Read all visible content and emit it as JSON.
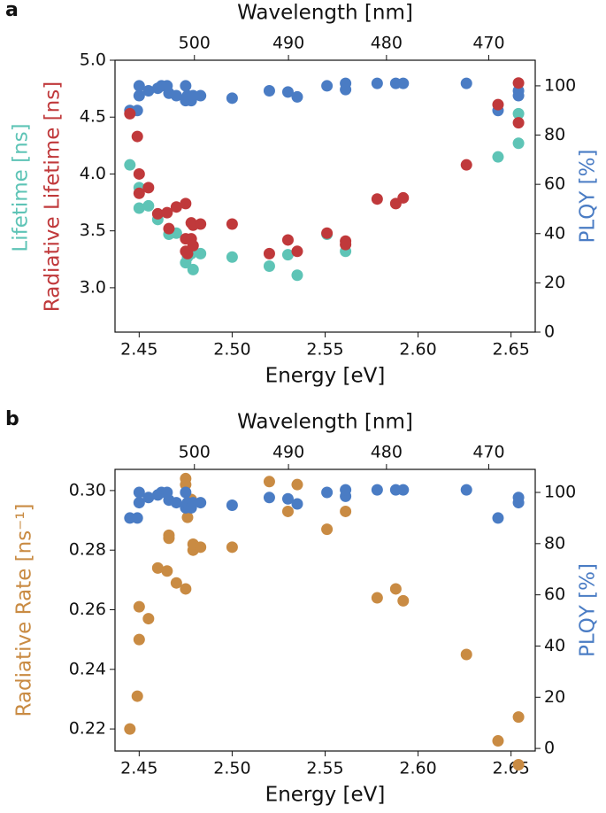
{
  "chart_data": [
    {
      "type": "scatter",
      "label": "a",
      "xlabel": "Energy [eV]",
      "x2label": "Wavelength [nm]",
      "ylabels": [
        {
          "text": "Lifetime [ns]",
          "color": "#5ec4b6"
        },
        {
          "text": "Radiative Lifetime [ns]",
          "color": "#c0393b"
        }
      ],
      "y2label": {
        "text": "PLQY [%]",
        "color": "#4a7cc4"
      },
      "xlim": [
        2.437,
        2.663
      ],
      "ylim": [
        2.61,
        5.0
      ],
      "y2lim": [
        0,
        110.4
      ],
      "xticks": [
        2.45,
        {
          "value": 2.5,
          "label": "2.50"
        },
        2.55,
        {
          "value": 2.6,
          "label": "2.60"
        },
        2.65
      ],
      "x2ticks": [
        {
          "value": 2.4797,
          "label": "500"
        },
        {
          "value": 2.5303,
          "label": "490"
        },
        {
          "value": 2.583,
          "label": "480"
        },
        {
          "value": 2.638,
          "label": "470"
        }
      ],
      "yticks": [
        {
          "value": 3.0,
          "label": "3.0"
        },
        3.5,
        {
          "value": 4.0,
          "label": "4.0"
        },
        4.5,
        {
          "value": 5.0,
          "label": "5.0"
        }
      ],
      "y2ticks": [
        0,
        20,
        40,
        60,
        80,
        100
      ],
      "series": [
        {
          "name": "PLQY",
          "color": "#4a7cc4",
          "axis": "y2",
          "x": [
            2.445,
            2.449,
            2.45,
            2.45,
            2.455,
            2.46,
            2.462,
            2.465,
            2.466,
            2.47,
            2.475,
            2.475,
            2.476,
            2.478,
            2.479,
            2.483,
            2.5,
            2.52,
            2.53,
            2.535,
            2.551,
            2.561,
            2.561,
            2.578,
            2.588,
            2.592,
            2.626,
            2.643,
            2.654,
            2.654
          ],
          "values": [
            90,
            90,
            96,
            100,
            98,
            99,
            100,
            100,
            97,
            96,
            100,
            94,
            96,
            94,
            96,
            96,
            95,
            98,
            97.5,
            95.5,
            100,
            98.5,
            101,
            101,
            101,
            101,
            101,
            90,
            96,
            98
          ]
        },
        {
          "name": "Lifetime",
          "color": "#5ec4b6",
          "axis": "y",
          "x": [
            2.445,
            2.45,
            2.45,
            2.455,
            2.46,
            2.466,
            2.47,
            2.475,
            2.476,
            2.478,
            2.479,
            2.483,
            2.5,
            2.52,
            2.53,
            2.535,
            2.551,
            2.561,
            2.643,
            2.654,
            2.654
          ],
          "values": [
            4.08,
            3.88,
            3.7,
            3.72,
            3.6,
            3.47,
            3.48,
            3.22,
            3.27,
            3.3,
            3.16,
            3.3,
            3.27,
            3.19,
            3.29,
            3.11,
            3.47,
            3.32,
            4.15,
            4.27,
            4.53
          ]
        },
        {
          "name": "Radiative Lifetime",
          "color": "#c0393b",
          "axis": "y",
          "x": [
            2.445,
            2.449,
            2.45,
            2.45,
            2.455,
            2.46,
            2.465,
            2.466,
            2.47,
            2.475,
            2.475,
            2.475,
            2.476,
            2.478,
            2.478,
            2.479,
            2.479,
            2.483,
            2.5,
            2.52,
            2.53,
            2.535,
            2.551,
            2.561,
            2.561,
            2.578,
            2.588,
            2.592,
            2.626,
            2.643,
            2.654,
            2.654
          ],
          "values": [
            4.53,
            4.33,
            4.0,
            3.83,
            3.88,
            3.65,
            3.66,
            3.52,
            3.71,
            3.74,
            3.43,
            3.32,
            3.3,
            3.57,
            3.43,
            3.37,
            3.55,
            3.56,
            3.56,
            3.3,
            3.42,
            3.32,
            3.48,
            3.41,
            3.38,
            3.78,
            3.74,
            3.79,
            4.08,
            4.61,
            4.8,
            4.45
          ]
        }
      ]
    },
    {
      "type": "scatter",
      "label": "b",
      "xlabel": "Energy [eV]",
      "x2label": "Wavelength [nm]",
      "ylabels": [
        {
          "text": "Radiative Rate [ns⁻¹]",
          "color": "#c98b43"
        }
      ],
      "y2label": {
        "text": "PLQY [%]",
        "color": "#4a7cc4"
      },
      "xlim": [
        2.437,
        2.663
      ],
      "ylim": [
        0.2126,
        0.3071
      ],
      "y2lim": [
        -1,
        109
      ],
      "xticks": [
        2.45,
        {
          "value": 2.5,
          "label": "2.50"
        },
        2.55,
        {
          "value": 2.6,
          "label": "2.60"
        },
        2.65
      ],
      "x2ticks": [
        {
          "value": 2.4797,
          "label": "500"
        },
        {
          "value": 2.5303,
          "label": "490"
        },
        {
          "value": 2.583,
          "label": "480"
        },
        {
          "value": 2.638,
          "label": "470"
        }
      ],
      "yticks": [
        0.22,
        0.24,
        0.26,
        0.28,
        {
          "value": 0.3,
          "label": "0.30"
        }
      ],
      "y2ticks": [
        0,
        20,
        40,
        60,
        80,
        100
      ],
      "series": [
        {
          "name": "Radiative Rate",
          "color": "#c98b43",
          "axis": "y",
          "x": [
            2.445,
            2.449,
            2.45,
            2.45,
            2.455,
            2.46,
            2.465,
            2.466,
            2.466,
            2.47,
            2.475,
            2.475,
            2.475,
            2.476,
            2.478,
            2.479,
            2.479,
            2.483,
            2.5,
            2.52,
            2.53,
            2.535,
            2.551,
            2.561,
            2.578,
            2.588,
            2.592,
            2.626,
            2.643,
            2.654,
            2.654
          ],
          "values": [
            0.22,
            0.231,
            0.25,
            0.261,
            0.257,
            0.274,
            0.273,
            0.284,
            0.285,
            0.269,
            0.267,
            0.304,
            0.302,
            0.291,
            0.297,
            0.28,
            0.282,
            0.281,
            0.281,
            0.303,
            0.293,
            0.302,
            0.287,
            0.293,
            0.264,
            0.267,
            0.263,
            0.245,
            0.216,
            0.224,
            0.208
          ]
        },
        {
          "name": "PLQY",
          "color": "#4a7cc4",
          "axis": "y2",
          "x": [
            2.445,
            2.449,
            2.45,
            2.45,
            2.455,
            2.46,
            2.462,
            2.465,
            2.466,
            2.47,
            2.475,
            2.475,
            2.476,
            2.478,
            2.479,
            2.483,
            2.5,
            2.52,
            2.53,
            2.535,
            2.551,
            2.561,
            2.561,
            2.578,
            2.588,
            2.592,
            2.626,
            2.643,
            2.654,
            2.654
          ],
          "values": [
            90,
            90,
            96,
            100,
            98,
            99,
            100,
            100,
            97,
            96,
            100,
            94,
            96,
            94,
            96,
            96,
            95,
            98,
            97.5,
            95.5,
            100,
            98.5,
            101,
            101,
            101,
            101,
            101,
            90,
            96,
            98
          ]
        }
      ]
    }
  ]
}
